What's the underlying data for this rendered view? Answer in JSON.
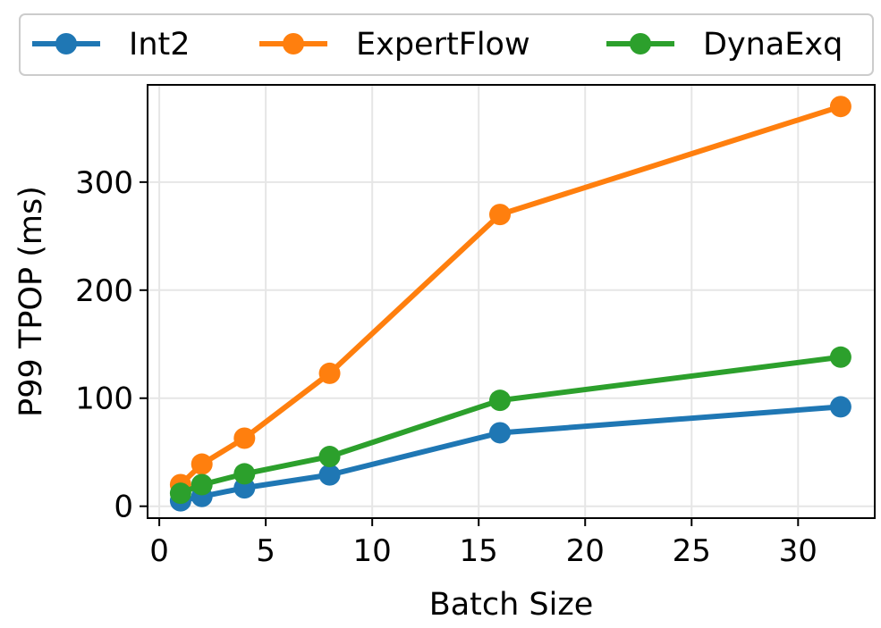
{
  "chart_data": {
    "type": "line",
    "title": "",
    "xlabel": "Batch Size",
    "ylabel": "P99 TPOP (ms)",
    "xlim": [
      -0.55,
      33.6
    ],
    "ylim": [
      -11,
      390
    ],
    "xticks": [
      0,
      5,
      10,
      15,
      20,
      25,
      30
    ],
    "yticks": [
      0,
      100,
      200,
      300
    ],
    "grid": true,
    "legend_position": "top, outside",
    "x": [
      1,
      2,
      4,
      8,
      16,
      32
    ],
    "series": [
      {
        "name": "Int2",
        "color": "#1f77b4",
        "values": [
          5,
          9,
          17,
          29,
          68,
          92
        ]
      },
      {
        "name": "ExpertFlow",
        "color": "#ff7f0e",
        "values": [
          20,
          39,
          63,
          123,
          270,
          370
        ]
      },
      {
        "name": "DynaExq",
        "color": "#2ca02c",
        "values": [
          12,
          20,
          30,
          46,
          98,
          138
        ]
      }
    ]
  }
}
